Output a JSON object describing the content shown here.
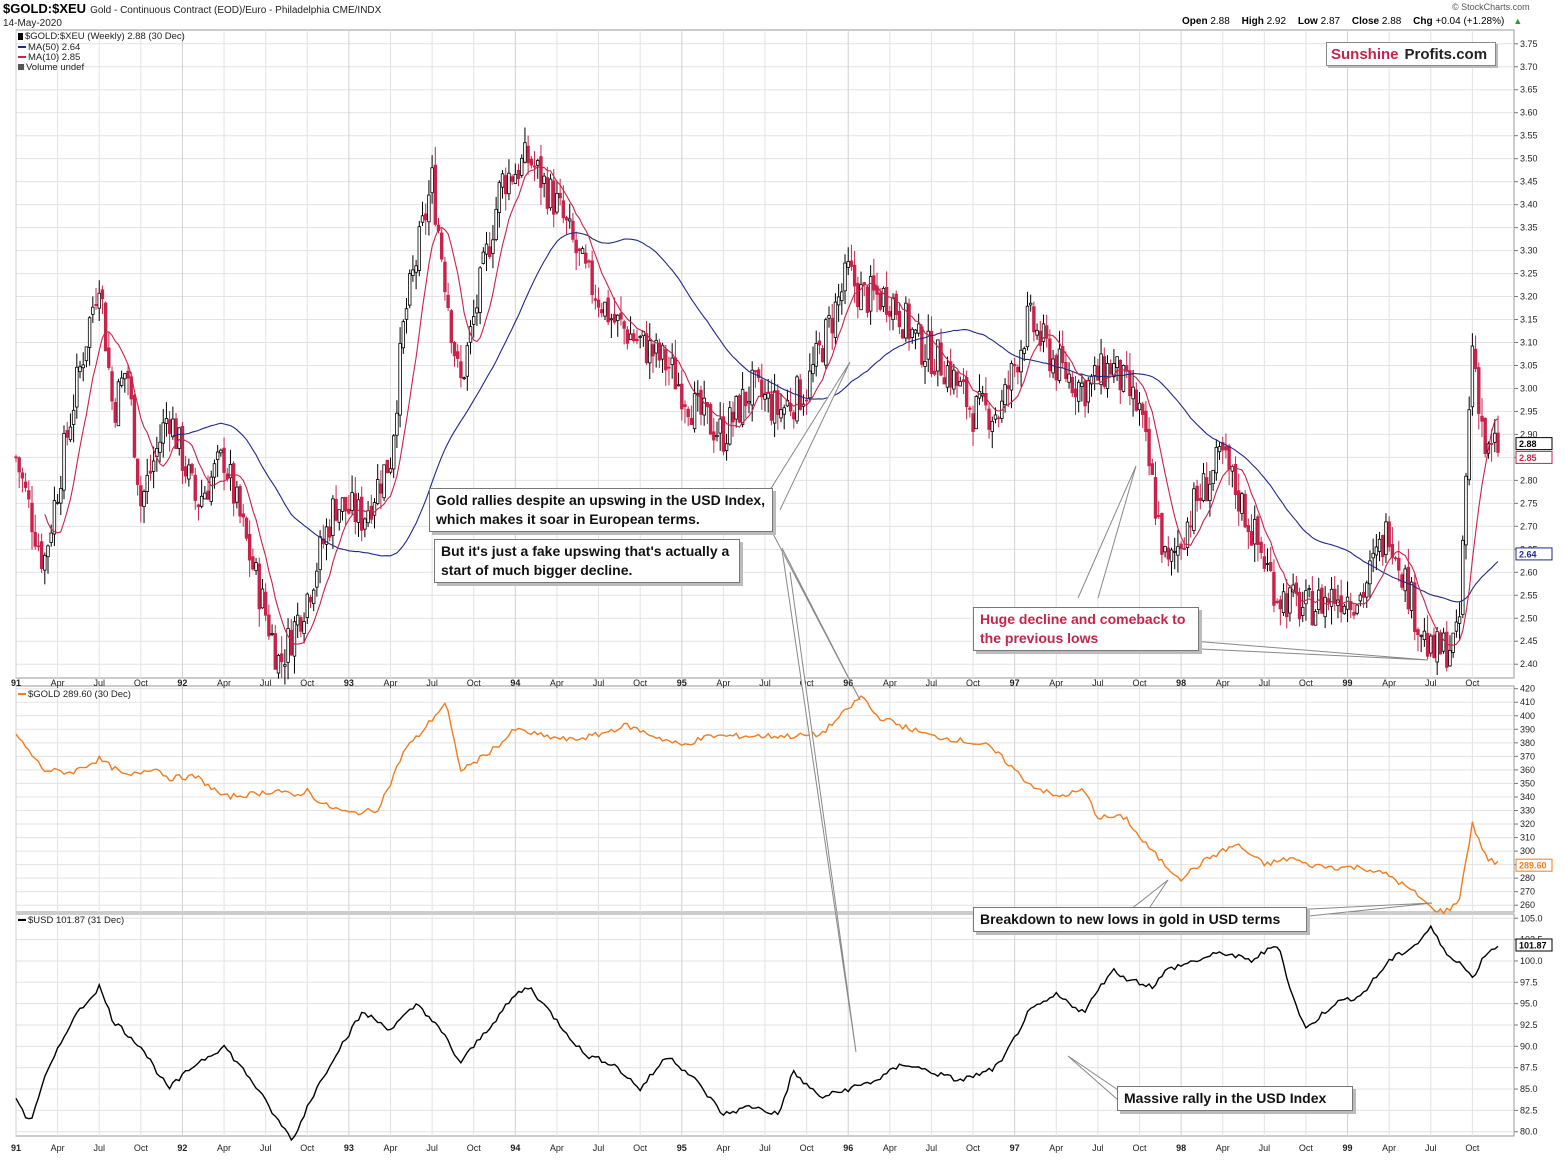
{
  "header": {
    "symbol": "$GOLD:$XEU",
    "description": "Gold - Continuous Contract (EOD)/Euro - Philadelphia CME/INDX",
    "date": "14-May-2020",
    "watermark": "© StockCharts.com",
    "ohlc": [
      {
        "label": "Open",
        "value": "2.88"
      },
      {
        "label": "High",
        "value": "2.92"
      },
      {
        "label": "Low",
        "value": "2.87"
      },
      {
        "label": "Close",
        "value": "2.88"
      },
      {
        "label": "Chg",
        "value": "+0.04 (+1.28%)"
      }
    ],
    "chg_arrow": "▲"
  },
  "logo": {
    "part1": "Sunshine",
    "part2": "Profits.com"
  },
  "legend": {
    "main": "$GOLD:$XEU (Weekly) 2.88 (30 Dec)",
    "ma50": "MA(50) 2.64",
    "ma10": "MA(10) 2.85",
    "volume": "Volume undef",
    "gold": "$GOLD 289.60 (30 Dec)",
    "usd": "$USD 101.87 (31 Dec)"
  },
  "last_value_labels": {
    "main": "2.88",
    "ma10": "2.85",
    "ma50": "2.64",
    "gold": "289.60",
    "usd": "101.87"
  },
  "colors": {
    "up": "#000000",
    "down": "#c8234b",
    "ma50": "#1f2a8a",
    "ma10": "#c8234b",
    "gold": "#f07d1e",
    "usd": "#000000",
    "grid": "#e3e3e3",
    "annotation_red": "#c8234b"
  },
  "annotations": {
    "a1": "Gold rallies despite an upswing in the USD Index, which makes it soar in European terms.",
    "a2": "But it's just a fake upswing that's actually a start of much bigger decline.",
    "a3": "Huge decline and comeback to the previous lows",
    "a4": "Breakdown to new lows in gold in USD terms",
    "a5": "Massive rally in the USD Index"
  },
  "chart_data": [
    {
      "type": "candlestick",
      "title": "$GOLD:$XEU (Weekly)",
      "x_axis_labels": [
        "91",
        "Apr",
        "Jul",
        "Oct",
        "92",
        "Apr",
        "Jul",
        "Oct",
        "93",
        "Apr",
        "Jul",
        "Oct",
        "94",
        "Apr",
        "Jul",
        "Oct",
        "95",
        "Apr",
        "Jul",
        "Oct",
        "96",
        "Apr",
        "Jul",
        "Oct",
        "97",
        "Apr",
        "Jul",
        "Oct",
        "98",
        "Apr",
        "Jul",
        "Oct",
        "99",
        "Apr",
        "Jul",
        "Oct"
      ],
      "y_ticks": [
        "3.75",
        "3.70",
        "3.65",
        "3.60",
        "3.55",
        "3.50",
        "3.45",
        "3.40",
        "3.35",
        "3.30",
        "3.25",
        "3.20",
        "3.15",
        "3.10",
        "3.05",
        "3.00",
        "2.95",
        "2.90",
        "2.85",
        "2.80",
        "2.75",
        "2.70",
        "2.65",
        "2.60",
        "2.55",
        "2.50",
        "2.45",
        "2.40"
      ],
      "ylim": [
        2.37,
        3.78
      ],
      "x_range": [
        "1991-01",
        "1999-12"
      ],
      "price_path": [
        [
          "1991-01",
          2.85
        ],
        [
          "1991-03",
          2.62
        ],
        [
          "1991-05",
          2.95
        ],
        [
          "1991-07",
          3.25
        ],
        [
          "1991-08",
          2.95
        ],
        [
          "1991-09",
          3.05
        ],
        [
          "1991-10",
          2.75
        ],
        [
          "1991-12",
          2.95
        ],
        [
          "1992-02",
          2.75
        ],
        [
          "1992-04",
          2.85
        ],
        [
          "1992-06",
          2.62
        ],
        [
          "1992-08",
          2.4
        ],
        [
          "1992-10",
          2.55
        ],
        [
          "1992-12",
          2.75
        ],
        [
          "1993-02",
          2.72
        ],
        [
          "1993-04",
          2.85
        ],
        [
          "1993-05",
          3.15
        ],
        [
          "1993-07",
          3.45
        ],
        [
          "1993-09",
          3.0
        ],
        [
          "1993-10",
          3.15
        ],
        [
          "1993-12",
          3.45
        ],
        [
          "1994-02",
          3.5
        ],
        [
          "1994-04",
          3.4
        ],
        [
          "1994-06",
          3.25
        ],
        [
          "1994-08",
          3.15
        ],
        [
          "1994-10",
          3.1
        ],
        [
          "1994-12",
          3.05
        ],
        [
          "1995-02",
          2.95
        ],
        [
          "1995-04",
          2.9
        ],
        [
          "1995-06",
          3.0
        ],
        [
          "1995-08",
          2.95
        ],
        [
          "1995-10",
          3.0
        ],
        [
          "1996-01",
          3.25
        ],
        [
          "1996-02",
          3.2
        ],
        [
          "1996-04",
          3.2
        ],
        [
          "1996-06",
          3.1
        ],
        [
          "1996-08",
          3.05
        ],
        [
          "1996-10",
          2.95
        ],
        [
          "1996-12",
          2.95
        ],
        [
          "1997-02",
          3.15
        ],
        [
          "1997-04",
          3.05
        ],
        [
          "1997-06",
          3.0
        ],
        [
          "1997-08",
          3.05
        ],
        [
          "1997-10",
          2.95
        ],
        [
          "1997-12",
          2.6
        ],
        [
          "1998-02",
          2.75
        ],
        [
          "1998-04",
          2.85
        ],
        [
          "1998-06",
          2.7
        ],
        [
          "1998-08",
          2.55
        ],
        [
          "1998-10",
          2.52
        ],
        [
          "1998-12",
          2.55
        ],
        [
          "1999-02",
          2.55
        ],
        [
          "1999-04",
          2.7
        ],
        [
          "1999-06",
          2.5
        ],
        [
          "1999-07",
          2.42
        ],
        [
          "1999-09",
          2.45
        ],
        [
          "1999-10",
          3.1
        ],
        [
          "1999-11",
          2.85
        ],
        [
          "1999-12",
          2.88
        ]
      ],
      "series": [
        {
          "name": "MA(50)",
          "last": 2.64
        },
        {
          "name": "MA(10)",
          "last": 2.85
        }
      ]
    },
    {
      "type": "line",
      "title": "$GOLD",
      "y_ticks": [
        "420",
        "410",
        "400",
        "390",
        "380",
        "370",
        "360",
        "350",
        "340",
        "330",
        "320",
        "310",
        "300",
        "290",
        "280",
        "270",
        "260"
      ],
      "ylim": [
        255,
        422
      ],
      "x_range": [
        "1991-01",
        "1999-12"
      ],
      "series": [
        {
          "name": "$GOLD",
          "points": [
            [
              "1991-01",
              386
            ],
            [
              "1991-03",
              360
            ],
            [
              "1991-05",
              358
            ],
            [
              "1991-07",
              368
            ],
            [
              "1991-09",
              355
            ],
            [
              "1991-11",
              362
            ],
            [
              "1991-12",
              354
            ],
            [
              "1992-02",
              355
            ],
            [
              "1992-04",
              340
            ],
            [
              "1992-06",
              342
            ],
            [
              "1992-08",
              345
            ],
            [
              "1992-09",
              340
            ],
            [
              "1992-10",
              345
            ],
            [
              "1992-11",
              335
            ],
            [
              "1993-01",
              328
            ],
            [
              "1993-03",
              330
            ],
            [
              "1993-04",
              350
            ],
            [
              "1993-05",
              375
            ],
            [
              "1993-06",
              385
            ],
            [
              "1993-08",
              410
            ],
            [
              "1993-09",
              360
            ],
            [
              "1993-10",
              365
            ],
            [
              "1993-12",
              380
            ],
            [
              "1994-01",
              390
            ],
            [
              "1994-03",
              385
            ],
            [
              "1994-05",
              382
            ],
            [
              "1994-07",
              386
            ],
            [
              "1994-09",
              393
            ],
            [
              "1994-11",
              385
            ],
            [
              "1995-01",
              378
            ],
            [
              "1995-03",
              385
            ],
            [
              "1995-05",
              385
            ],
            [
              "1995-07",
              385
            ],
            [
              "1995-09",
              385
            ],
            [
              "1995-11",
              386
            ],
            [
              "1996-01",
              405
            ],
            [
              "1996-02",
              415
            ],
            [
              "1996-03",
              400
            ],
            [
              "1996-05",
              392
            ],
            [
              "1996-07",
              385
            ],
            [
              "1996-09",
              382
            ],
            [
              "1996-11",
              378
            ],
            [
              "1996-12",
              370
            ],
            [
              "1997-02",
              350
            ],
            [
              "1997-03",
              345
            ],
            [
              "1997-04",
              340
            ],
            [
              "1997-06",
              345
            ],
            [
              "1997-07",
              325
            ],
            [
              "1997-09",
              325
            ],
            [
              "1997-10",
              310
            ],
            [
              "1997-12",
              288
            ],
            [
              "1998-01",
              280
            ],
            [
              "1998-03",
              295
            ],
            [
              "1998-05",
              305
            ],
            [
              "1998-07",
              290
            ],
            [
              "1998-09",
              295
            ],
            [
              "1998-10",
              290
            ],
            [
              "1998-12",
              288
            ],
            [
              "1999-02",
              288
            ],
            [
              "1999-04",
              282
            ],
            [
              "1999-06",
              268
            ],
            [
              "1999-07",
              258
            ],
            [
              "1999-08",
              255
            ],
            [
              "1999-09",
              262
            ],
            [
              "1999-10",
              320
            ],
            [
              "1999-11",
              295
            ],
            [
              "1999-12",
              289.6
            ]
          ]
        }
      ]
    },
    {
      "type": "line",
      "title": "$USD",
      "y_ticks": [
        "105.0",
        "102.5",
        "100.0",
        "97.5",
        "95.0",
        "92.5",
        "90.0",
        "87.5",
        "85.0",
        "82.5",
        "80.0"
      ],
      "ylim": [
        79.5,
        105.5
      ],
      "x_range": [
        "1991-01",
        "1999-12"
      ],
      "series": [
        {
          "name": "$USD",
          "points": [
            [
              "1991-01",
              84
            ],
            [
              "1991-02",
              81
            ],
            [
              "1991-03",
              86
            ],
            [
              "1991-05",
              93
            ],
            [
              "1991-07",
              97
            ],
            [
              "1991-08",
              93
            ],
            [
              "1991-10",
              90
            ],
            [
              "1991-12",
              85
            ],
            [
              "1992-02",
              88
            ],
            [
              "1992-04",
              90
            ],
            [
              "1992-06",
              86
            ],
            [
              "1992-08",
              81
            ],
            [
              "1992-09",
              79
            ],
            [
              "1992-10",
              83
            ],
            [
              "1992-12",
              89
            ],
            [
              "1993-02",
              94
            ],
            [
              "1993-04",
              92
            ],
            [
              "1993-06",
              95
            ],
            [
              "1993-08",
              91
            ],
            [
              "1993-09",
              88
            ],
            [
              "1993-11",
              92
            ],
            [
              "1994-01",
              96
            ],
            [
              "1994-02",
              97
            ],
            [
              "1994-04",
              93
            ],
            [
              "1994-06",
              89
            ],
            [
              "1994-08",
              88
            ],
            [
              "1994-10",
              85
            ],
            [
              "1994-12",
              89
            ],
            [
              "1995-02",
              86
            ],
            [
              "1995-04",
              82
            ],
            [
              "1995-06",
              83
            ],
            [
              "1995-08",
              82
            ],
            [
              "1995-09",
              87
            ],
            [
              "1995-11",
              84
            ],
            [
              "1996-01",
              85
            ],
            [
              "1996-03",
              86
            ],
            [
              "1996-05",
              88
            ],
            [
              "1996-07",
              87
            ],
            [
              "1996-09",
              86
            ],
            [
              "1996-11",
              87
            ],
            [
              "1996-12",
              88
            ],
            [
              "1997-02",
              94
            ],
            [
              "1997-04",
              96
            ],
            [
              "1997-06",
              94
            ],
            [
              "1997-08",
              99
            ],
            [
              "1997-09",
              98
            ],
            [
              "1997-11",
              97
            ],
            [
              "1997-12",
              99
            ],
            [
              "1998-02",
              100
            ],
            [
              "1998-04",
              101
            ],
            [
              "1998-06",
              100
            ],
            [
              "1998-08",
              102
            ],
            [
              "1998-09",
              96
            ],
            [
              "1998-10",
              92
            ],
            [
              "1998-12",
              95
            ],
            [
              "1999-02",
              96
            ],
            [
              "1999-04",
              100
            ],
            [
              "1999-06",
              102
            ],
            [
              "1999-07",
              104
            ],
            [
              "1999-08",
              101
            ],
            [
              "1999-09",
              100
            ],
            [
              "1999-10",
              98
            ],
            [
              "1999-11",
              101
            ],
            [
              "1999-12",
              101.87
            ]
          ]
        }
      ]
    }
  ]
}
